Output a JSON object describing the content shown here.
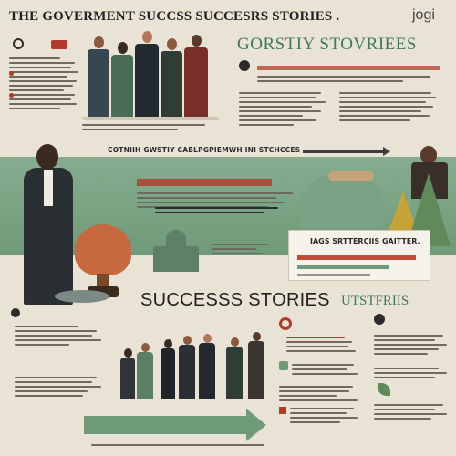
{
  "header": {
    "title": "THE GOVERMENT SUCCSS SUCCESRS STORIES .",
    "logo": "jogi"
  },
  "top_right": {
    "heading": "GORSTIY STOVRIEES"
  },
  "band": {
    "caption": "COTNIIH GWSTIY CABLPGPIEMWH INI STCHCCES"
  },
  "chart_box": {
    "title": "IAGS SRTTERCIIS GAITTER."
  },
  "middle": {
    "heading": "SUCCESSS STORIES",
    "heading_alt": "UTSTFRIIS"
  },
  "colors": {
    "background": "#e9e3d5",
    "accent_red": "#b23a2a",
    "green": "#6f9a7a",
    "dark": "#2b2b2b"
  },
  "icons": [
    "magnifier-icon",
    "trophy-icon",
    "capitol-building-icon",
    "arrow-right-icon",
    "info-badge-icon"
  ]
}
